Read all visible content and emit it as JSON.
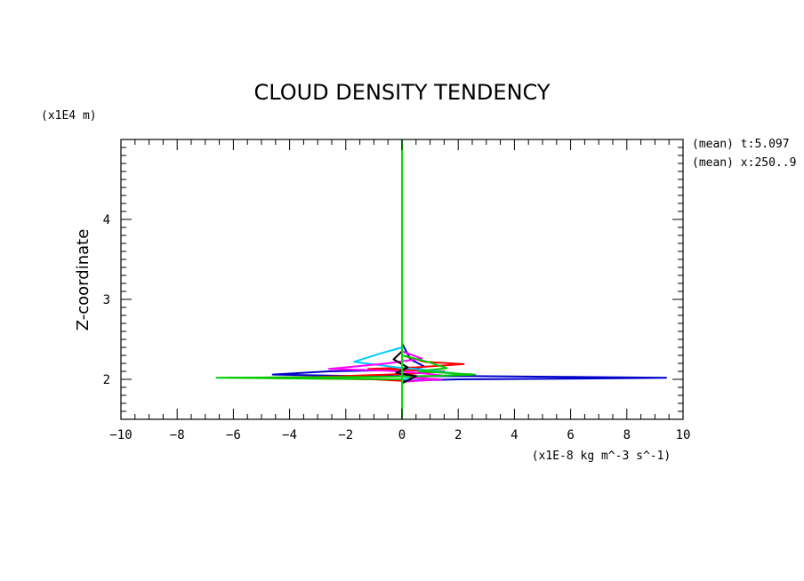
{
  "chart_data": {
    "type": "line",
    "title": "CLOUD DENSITY TENDENCY",
    "xlabel": "(x1E-8 kg m^-3 s^-1)",
    "ylabel": "Z-coordinate",
    "yunit": "(x1E4 m)",
    "annotations": [
      "(mean) t:5.097",
      "(mean) x:250..9"
    ],
    "xlim": [
      -10,
      10
    ],
    "ylim": [
      1.5,
      5.0
    ],
    "xticks": [
      -10,
      -8,
      -6,
      -4,
      -2,
      0,
      2,
      4,
      6,
      8,
      10
    ],
    "yticks": [
      2,
      3,
      4
    ],
    "grid": false,
    "series": [
      {
        "color": "#0000cc",
        "points": [
          [
            0,
            5.0
          ],
          [
            0,
            2.45
          ],
          [
            0.3,
            2.25
          ],
          [
            0.8,
            2.16
          ],
          [
            0.2,
            2.12
          ],
          [
            -2.6,
            2.1
          ],
          [
            -4.6,
            2.06
          ],
          [
            -1.5,
            2.04
          ],
          [
            2.5,
            2.04
          ],
          [
            6.0,
            2.03
          ],
          [
            9.4,
            2.02
          ],
          [
            6.5,
            2.01
          ],
          [
            2.0,
            2.0
          ],
          [
            0,
            1.98
          ],
          [
            0,
            1.5
          ]
        ]
      },
      {
        "color": "#ff0000",
        "points": [
          [
            0,
            5.0
          ],
          [
            0,
            2.3
          ],
          [
            0.8,
            2.22
          ],
          [
            2.2,
            2.19
          ],
          [
            0.5,
            2.15
          ],
          [
            -1.2,
            2.13
          ],
          [
            1.5,
            2.1
          ],
          [
            0.3,
            2.07
          ],
          [
            -3.0,
            2.03
          ],
          [
            -5.5,
            2.02
          ],
          [
            -1.0,
            2.0
          ],
          [
            0,
            1.98
          ],
          [
            0,
            1.5
          ]
        ]
      },
      {
        "color": "#00ccff",
        "points": [
          [
            0,
            5.0
          ],
          [
            0,
            2.4
          ],
          [
            -0.8,
            2.32
          ],
          [
            -1.7,
            2.22
          ],
          [
            -0.2,
            2.15
          ],
          [
            0.8,
            2.12
          ],
          [
            1.5,
            2.09
          ],
          [
            2.2,
            2.06
          ],
          [
            0.5,
            2.03
          ],
          [
            0,
            2.0
          ],
          [
            0,
            1.5
          ]
        ]
      },
      {
        "color": "#ff00ff",
        "points": [
          [
            0,
            5.0
          ],
          [
            0,
            2.35
          ],
          [
            0.7,
            2.26
          ],
          [
            -0.5,
            2.2
          ],
          [
            -2.6,
            2.13
          ],
          [
            -0.6,
            2.11
          ],
          [
            0.6,
            2.08
          ],
          [
            1.4,
            2.05
          ],
          [
            0.3,
            2.02
          ],
          [
            1.4,
            2.0
          ],
          [
            0,
            1.97
          ],
          [
            0,
            1.5
          ]
        ]
      },
      {
        "color": "#00cc00",
        "points": [
          [
            0,
            5.0
          ],
          [
            0,
            2.3
          ],
          [
            0.9,
            2.22
          ],
          [
            1.6,
            2.14
          ],
          [
            0.6,
            2.1
          ],
          [
            2.6,
            2.06
          ],
          [
            1.0,
            2.04
          ],
          [
            -1.0,
            2.03
          ],
          [
            -6.6,
            2.02
          ],
          [
            -3.5,
            2.01
          ],
          [
            0,
            2.0
          ],
          [
            0,
            1.5
          ]
        ]
      },
      {
        "color": "#000000",
        "points": [
          [
            0,
            3.5
          ],
          [
            0,
            2.35
          ],
          [
            -0.3,
            2.25
          ],
          [
            0.2,
            2.15
          ],
          [
            -0.2,
            2.08
          ],
          [
            0.5,
            2.04
          ],
          [
            0,
            1.95
          ]
        ]
      },
      {
        "color": "#00dd00",
        "points": [
          [
            0,
            5.0
          ],
          [
            0,
            1.5
          ]
        ]
      }
    ]
  }
}
